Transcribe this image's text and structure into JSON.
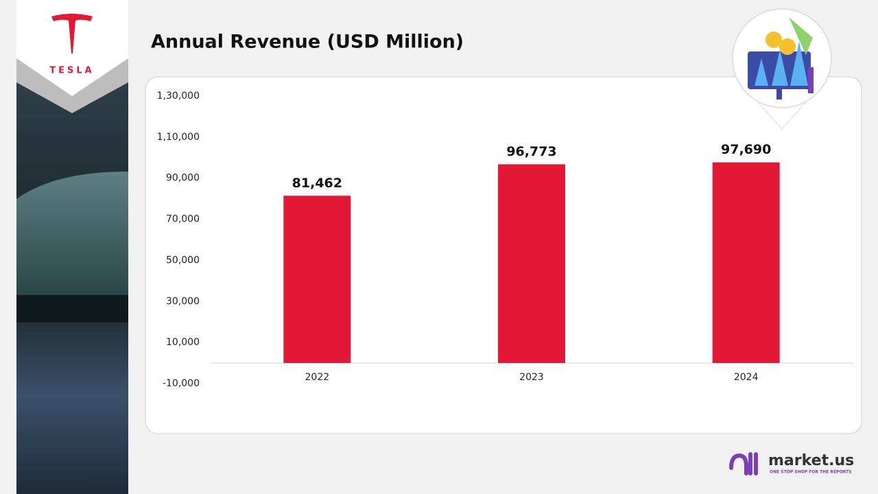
{
  "chart_data": {
    "type": "bar",
    "title": "Annual Revenue (USD Million)",
    "categories": [
      "2022",
      "2023",
      "2024"
    ],
    "values": [
      81462,
      96773,
      97690
    ],
    "value_labels": [
      "81,462",
      "96,773",
      "97,690"
    ],
    "color": "#e31837",
    "ylim": [
      -10000,
      130000
    ],
    "yticks": [
      {
        "value": -10000,
        "label": "-10,000"
      },
      {
        "value": 10000,
        "label": "10,000"
      },
      {
        "value": 30000,
        "label": "30,000"
      },
      {
        "value": 50000,
        "label": "50,000"
      },
      {
        "value": 70000,
        "label": "70,000"
      },
      {
        "value": 90000,
        "label": "90,000"
      },
      {
        "value": 110000,
        "label": "1,10,000"
      },
      {
        "value": 130000,
        "label": "1,30,000"
      }
    ],
    "grid": false
  },
  "branding": {
    "logo": "TESLA",
    "site": "market.us",
    "tagline": "ONE STOP SHOP FOR THE REPORTS"
  }
}
